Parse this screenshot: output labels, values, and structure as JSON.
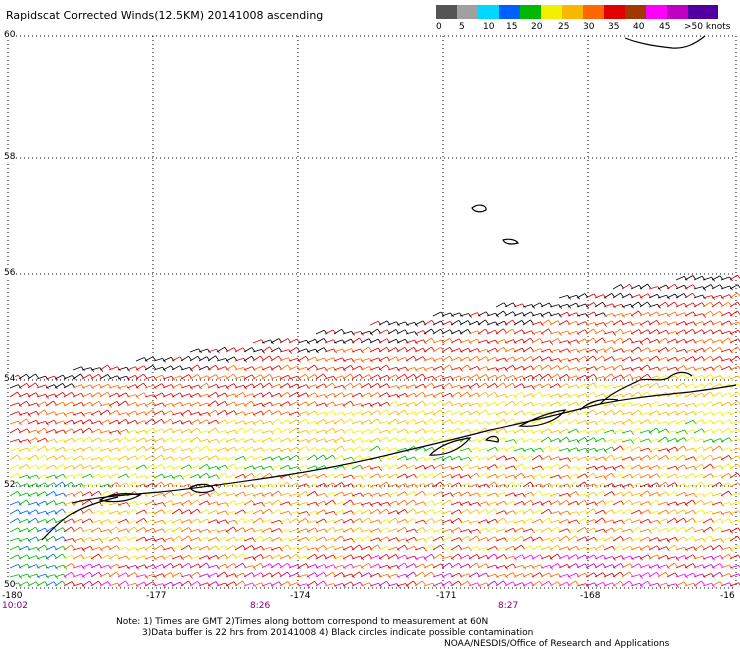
{
  "title": "Rapidscat Corrected Winds(12.5KM) 20141008 ascending",
  "colorbar": {
    "colors": [
      "#555555",
      "#a0a0a0",
      "#00d8ff",
      "#0060ff",
      "#00b800",
      "#f0f000",
      "#f8b800",
      "#ff6800",
      "#e00000",
      "#a03800",
      "#ff00ff",
      "#c000c0",
      "#5000a0"
    ],
    "labels": [
      "0",
      "5",
      "10",
      "15",
      "20",
      "25",
      "30",
      "35",
      "40",
      "45",
      ">50 knots"
    ]
  },
  "lat_labels": [
    "60",
    "58",
    "56",
    "54",
    "52",
    "50"
  ],
  "lon_labels": [
    "-180",
    "-177",
    "-174",
    "-171",
    "-168",
    "-16"
  ],
  "time_labels": [
    "10:02",
    "8:26",
    "8:27"
  ],
  "notes": {
    "line1": "Note: 1) Times are GMT 2)Times along bottom correspond to measurement at 60N",
    "line2": "3)Data buffer is 22 hrs from 20141008 4) Black circles indicate possible contamination",
    "line3": "NOAA/NESDIS/Office of Research and Applications"
  }
}
